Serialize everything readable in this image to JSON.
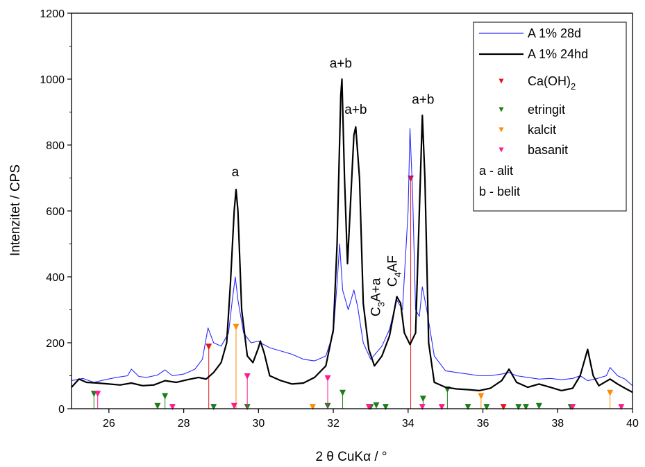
{
  "chart_data": {
    "type": "line",
    "xlabel": "2 θ CuKα / °",
    "ylabel": "Intenzitet / CPS",
    "xlim": [
      25,
      40
    ],
    "ylim": [
      0,
      1200
    ],
    "xticks": [
      26,
      28,
      30,
      32,
      34,
      36,
      38,
      40
    ],
    "yticks": [
      0,
      200,
      400,
      600,
      800,
      1000,
      1200
    ],
    "grid": false,
    "legend_position": "top-right",
    "series": [
      {
        "name": "A 1% 28d",
        "color": "#2a2aff",
        "points": [
          [
            25.0,
            85
          ],
          [
            25.3,
            92
          ],
          [
            25.6,
            80
          ],
          [
            25.9,
            88
          ],
          [
            26.2,
            95
          ],
          [
            26.5,
            100
          ],
          [
            26.6,
            120
          ],
          [
            26.8,
            98
          ],
          [
            27.0,
            95
          ],
          [
            27.3,
            102
          ],
          [
            27.5,
            118
          ],
          [
            27.7,
            100
          ],
          [
            28.0,
            105
          ],
          [
            28.3,
            120
          ],
          [
            28.5,
            150
          ],
          [
            28.65,
            245
          ],
          [
            28.8,
            200
          ],
          [
            29.0,
            190
          ],
          [
            29.2,
            230
          ],
          [
            29.3,
            330
          ],
          [
            29.38,
            400
          ],
          [
            29.45,
            330
          ],
          [
            29.6,
            230
          ],
          [
            29.8,
            200
          ],
          [
            30.0,
            205
          ],
          [
            30.05,
            200
          ],
          [
            30.3,
            185
          ],
          [
            30.6,
            175
          ],
          [
            30.9,
            165
          ],
          [
            31.2,
            150
          ],
          [
            31.5,
            145
          ],
          [
            31.8,
            160
          ],
          [
            32.0,
            230
          ],
          [
            32.1,
            380
          ],
          [
            32.17,
            500
          ],
          [
            32.25,
            360
          ],
          [
            32.4,
            300
          ],
          [
            32.55,
            360
          ],
          [
            32.65,
            310
          ],
          [
            32.8,
            200
          ],
          [
            33.0,
            150
          ],
          [
            33.3,
            190
          ],
          [
            33.5,
            240
          ],
          [
            33.7,
            330
          ],
          [
            33.85,
            300
          ],
          [
            34.0,
            600
          ],
          [
            34.05,
            850
          ],
          [
            34.12,
            650
          ],
          [
            34.2,
            300
          ],
          [
            34.3,
            280
          ],
          [
            34.38,
            370
          ],
          [
            34.5,
            300
          ],
          [
            34.7,
            160
          ],
          [
            35.0,
            115
          ],
          [
            35.3,
            110
          ],
          [
            35.6,
            105
          ],
          [
            35.9,
            100
          ],
          [
            36.2,
            100
          ],
          [
            36.5,
            105
          ],
          [
            36.7,
            110
          ],
          [
            36.9,
            100
          ],
          [
            37.2,
            95
          ],
          [
            37.5,
            90
          ],
          [
            37.8,
            92
          ],
          [
            38.1,
            88
          ],
          [
            38.4,
            92
          ],
          [
            38.6,
            100
          ],
          [
            38.8,
            85
          ],
          [
            39.0,
            90
          ],
          [
            39.3,
            100
          ],
          [
            39.4,
            125
          ],
          [
            39.6,
            100
          ],
          [
            39.8,
            90
          ],
          [
            40.0,
            70
          ]
        ]
      },
      {
        "name": "A 1% 24hd",
        "color": "#000000",
        "points": [
          [
            25.0,
            65
          ],
          [
            25.2,
            90
          ],
          [
            25.4,
            80
          ],
          [
            25.7,
            78
          ],
          [
            26.0,
            75
          ],
          [
            26.3,
            72
          ],
          [
            26.6,
            78
          ],
          [
            26.9,
            70
          ],
          [
            27.2,
            72
          ],
          [
            27.5,
            85
          ],
          [
            27.8,
            80
          ],
          [
            28.1,
            88
          ],
          [
            28.4,
            95
          ],
          [
            28.6,
            90
          ],
          [
            28.8,
            110
          ],
          [
            29.0,
            140
          ],
          [
            29.15,
            200
          ],
          [
            29.25,
            380
          ],
          [
            29.35,
            600
          ],
          [
            29.4,
            665
          ],
          [
            29.45,
            600
          ],
          [
            29.55,
            300
          ],
          [
            29.7,
            160
          ],
          [
            29.85,
            140
          ],
          [
            30.0,
            185
          ],
          [
            30.05,
            205
          ],
          [
            30.15,
            170
          ],
          [
            30.3,
            100
          ],
          [
            30.6,
            85
          ],
          [
            30.9,
            75
          ],
          [
            31.2,
            78
          ],
          [
            31.5,
            95
          ],
          [
            31.8,
            130
          ],
          [
            32.0,
            240
          ],
          [
            32.1,
            500
          ],
          [
            32.2,
            950
          ],
          [
            32.23,
            1000
          ],
          [
            32.3,
            700
          ],
          [
            32.38,
            440
          ],
          [
            32.45,
            600
          ],
          [
            32.55,
            830
          ],
          [
            32.6,
            855
          ],
          [
            32.7,
            700
          ],
          [
            32.8,
            320
          ],
          [
            32.95,
            180
          ],
          [
            33.1,
            130
          ],
          [
            33.3,
            160
          ],
          [
            33.5,
            220
          ],
          [
            33.7,
            340
          ],
          [
            33.8,
            320
          ],
          [
            33.9,
            230
          ],
          [
            34.05,
            195
          ],
          [
            34.2,
            230
          ],
          [
            34.3,
            600
          ],
          [
            34.38,
            890
          ],
          [
            34.45,
            700
          ],
          [
            34.55,
            200
          ],
          [
            34.7,
            80
          ],
          [
            35.0,
            65
          ],
          [
            35.3,
            60
          ],
          [
            35.6,
            58
          ],
          [
            35.9,
            55
          ],
          [
            36.2,
            62
          ],
          [
            36.5,
            85
          ],
          [
            36.7,
            120
          ],
          [
            36.9,
            80
          ],
          [
            37.2,
            65
          ],
          [
            37.5,
            75
          ],
          [
            37.8,
            65
          ],
          [
            38.1,
            55
          ],
          [
            38.4,
            62
          ],
          [
            38.6,
            100
          ],
          [
            38.8,
            180
          ],
          [
            38.95,
            100
          ],
          [
            39.1,
            70
          ],
          [
            39.4,
            90
          ],
          [
            39.6,
            75
          ],
          [
            39.8,
            62
          ],
          [
            40.0,
            50
          ]
        ]
      }
    ],
    "reference_markers": [
      {
        "name": "Ca(OH)2",
        "color": "#e3161c",
        "points": [
          [
            28.67,
            188
          ],
          [
            34.07,
            698
          ],
          [
            36.55,
            5
          ]
        ]
      },
      {
        "name": "etringit",
        "color": "#1b7d1b",
        "points": [
          [
            25.6,
            45
          ],
          [
            27.3,
            8
          ],
          [
            27.5,
            38
          ],
          [
            28.8,
            5
          ],
          [
            29.7,
            5
          ],
          [
            31.85,
            8
          ],
          [
            32.25,
            48
          ],
          [
            33.0,
            5
          ],
          [
            33.15,
            10
          ],
          [
            33.4,
            5
          ],
          [
            34.4,
            30
          ],
          [
            35.05,
            58
          ],
          [
            35.6,
            5
          ],
          [
            36.1,
            5
          ],
          [
            36.95,
            5
          ],
          [
            37.15,
            5
          ],
          [
            37.5,
            8
          ],
          [
            38.35,
            5
          ]
        ]
      },
      {
        "name": "kalcit",
        "color": "#ff8c00",
        "points": [
          [
            29.4,
            248
          ],
          [
            31.45,
            5
          ],
          [
            35.95,
            38
          ],
          [
            39.4,
            48
          ]
        ]
      },
      {
        "name": "basanit",
        "color": "#ff1b8d",
        "points": [
          [
            25.7,
            45
          ],
          [
            27.7,
            5
          ],
          [
            29.35,
            8
          ],
          [
            29.7,
            98
          ],
          [
            31.85,
            92
          ],
          [
            32.95,
            5
          ],
          [
            34.38,
            5
          ],
          [
            34.9,
            5
          ],
          [
            38.4,
            5
          ],
          [
            39.7,
            5
          ]
        ]
      }
    ],
    "annotations": [
      {
        "text": "a",
        "x": 29.38,
        "y": 705
      },
      {
        "text": "a+b",
        "x": 32.2,
        "y": 1035
      },
      {
        "text": "a+b",
        "x": 32.6,
        "y": 895
      },
      {
        "text": "a+b",
        "x": 34.4,
        "y": 925
      }
    ],
    "rotated_annotations": [
      {
        "base": "C",
        "sub": "3",
        "rest": "A+a",
        "x": 33.25,
        "y": 280
      },
      {
        "base": "C",
        "sub": "4",
        "rest": "AF",
        "x": 33.7,
        "y": 370
      }
    ],
    "legend_entries": [
      {
        "label": "A 1% 28d",
        "kind": "line",
        "color": "#2a2aff"
      },
      {
        "label": "A 1% 24hd",
        "kind": "line",
        "color": "#000000"
      },
      {
        "label": "Ca(OH)",
        "sub": "2",
        "kind": "marker",
        "color": "#e3161c"
      },
      {
        "label": "etringit",
        "kind": "marker",
        "color": "#1b7d1b"
      },
      {
        "label": "kalcit",
        "kind": "marker",
        "color": "#ff8c00"
      },
      {
        "label": "basanit",
        "kind": "marker",
        "color": "#ff1b8d"
      },
      {
        "label": "a - alit",
        "kind": "text"
      },
      {
        "label": "b - belit",
        "kind": "text"
      }
    ]
  }
}
